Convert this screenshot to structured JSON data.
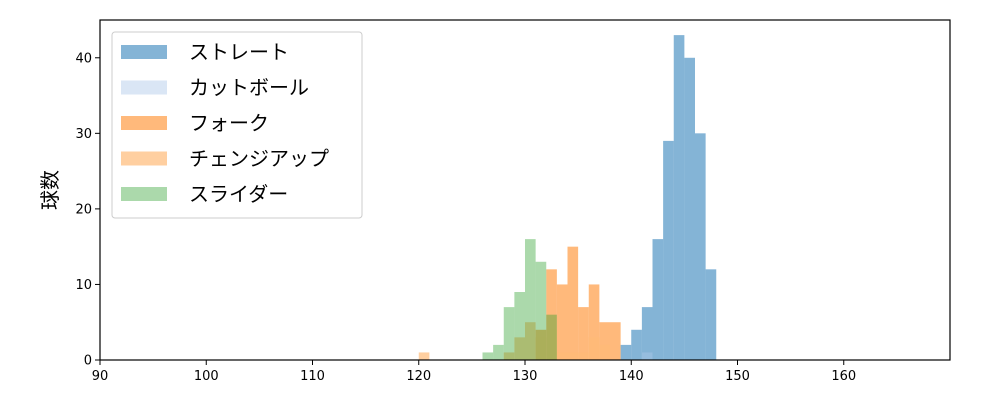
{
  "chart_data": {
    "type": "bar",
    "subtype": "histogram",
    "title": "",
    "xlabel": "",
    "ylabel": "球数",
    "xlim": [
      90,
      170
    ],
    "ylim": [
      0,
      45
    ],
    "xticks": [
      90,
      100,
      110,
      120,
      130,
      140,
      150,
      160
    ],
    "yticks": [
      0,
      10,
      20,
      30,
      40
    ],
    "bin_width": 1,
    "grid": false,
    "legend_position": "top-left",
    "series": [
      {
        "name": "ストレート",
        "color": "#1f77b4",
        "opacity": 0.55,
        "bins": [
          {
            "x": 139,
            "value": 2
          },
          {
            "x": 140,
            "value": 4
          },
          {
            "x": 141,
            "value": 7
          },
          {
            "x": 142,
            "value": 16
          },
          {
            "x": 143,
            "value": 29
          },
          {
            "x": 144,
            "value": 43
          },
          {
            "x": 145,
            "value": 40
          },
          {
            "x": 146,
            "value": 30
          },
          {
            "x": 147,
            "value": 12
          }
        ]
      },
      {
        "name": "カットボール",
        "color": "#aec7e8",
        "opacity": 0.45,
        "bins": [
          {
            "x": 141,
            "value": 1
          }
        ]
      },
      {
        "name": "フォーク",
        "color": "#ff7f0e",
        "opacity": 0.55,
        "bins": [
          {
            "x": 131,
            "value": 4
          },
          {
            "x": 132,
            "value": 12
          },
          {
            "x": 133,
            "value": 10
          },
          {
            "x": 134,
            "value": 15
          },
          {
            "x": 135,
            "value": 7
          },
          {
            "x": 136,
            "value": 10
          },
          {
            "x": 137,
            "value": 5
          },
          {
            "x": 138,
            "value": 5
          }
        ]
      },
      {
        "name": "チェンジアップ",
        "color": "#ffbb78",
        "opacity": 0.7,
        "bins": [
          {
            "x": 120,
            "value": 1
          },
          {
            "x": 128,
            "value": 1
          },
          {
            "x": 129,
            "value": 3
          },
          {
            "x": 130,
            "value": 5
          },
          {
            "x": 131,
            "value": 3
          },
          {
            "x": 132,
            "value": 4
          },
          {
            "x": 133,
            "value": 1
          },
          {
            "x": 134,
            "value": 1
          },
          {
            "x": 135,
            "value": 1
          },
          {
            "x": 136,
            "value": 3
          },
          {
            "x": 137,
            "value": 2
          }
        ]
      },
      {
        "name": "スライダー",
        "color": "#2ca02c",
        "opacity": 0.4,
        "bins": [
          {
            "x": 126,
            "value": 1
          },
          {
            "x": 127,
            "value": 2
          },
          {
            "x": 128,
            "value": 7
          },
          {
            "x": 129,
            "value": 9
          },
          {
            "x": 130,
            "value": 16
          },
          {
            "x": 131,
            "value": 13
          },
          {
            "x": 132,
            "value": 6
          }
        ]
      }
    ]
  }
}
